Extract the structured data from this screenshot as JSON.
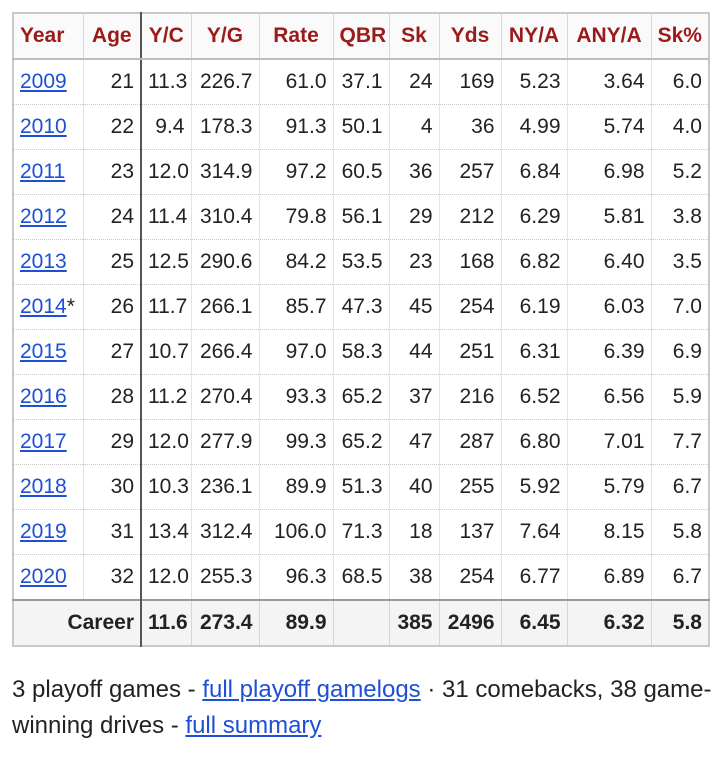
{
  "table": {
    "headers": [
      "Year",
      "Age",
      "Y/C",
      "Y/G",
      "Rate",
      "QBR",
      "Sk",
      "Yds",
      "NY/A",
      "ANY/A",
      "Sk%"
    ],
    "rows": [
      {
        "year": "2009",
        "award": "",
        "age": "21",
        "ypc": "11.3",
        "ypg": "226.7",
        "rate": "61.0",
        "qbr": "37.1",
        "sk": "24",
        "yds": "169",
        "nya": "5.23",
        "anya": "3.64",
        "skpct": "6.0"
      },
      {
        "year": "2010",
        "award": "",
        "age": "22",
        "ypc": "9.4",
        "ypg": "178.3",
        "rate": "91.3",
        "qbr": "50.1",
        "sk": "4",
        "yds": "36",
        "nya": "4.99",
        "anya": "5.74",
        "skpct": "4.0"
      },
      {
        "year": "2011",
        "award": "",
        "age": "23",
        "ypc": "12.0",
        "ypg": "314.9",
        "rate": "97.2",
        "qbr": "60.5",
        "sk": "36",
        "yds": "257",
        "nya": "6.84",
        "anya": "6.98",
        "skpct": "5.2"
      },
      {
        "year": "2012",
        "award": "",
        "age": "24",
        "ypc": "11.4",
        "ypg": "310.4",
        "rate": "79.8",
        "qbr": "56.1",
        "sk": "29",
        "yds": "212",
        "nya": "6.29",
        "anya": "5.81",
        "skpct": "3.8"
      },
      {
        "year": "2013",
        "award": "",
        "age": "25",
        "ypc": "12.5",
        "ypg": "290.6",
        "rate": "84.2",
        "qbr": "53.5",
        "sk": "23",
        "yds": "168",
        "nya": "6.82",
        "anya": "6.40",
        "skpct": "3.5"
      },
      {
        "year": "2014",
        "award": "*",
        "age": "26",
        "ypc": "11.7",
        "ypg": "266.1",
        "rate": "85.7",
        "qbr": "47.3",
        "sk": "45",
        "yds": "254",
        "nya": "6.19",
        "anya": "6.03",
        "skpct": "7.0"
      },
      {
        "year": "2015",
        "award": "",
        "age": "27",
        "ypc": "10.7",
        "ypg": "266.4",
        "rate": "97.0",
        "qbr": "58.3",
        "sk": "44",
        "yds": "251",
        "nya": "6.31",
        "anya": "6.39",
        "skpct": "6.9"
      },
      {
        "year": "2016",
        "award": "",
        "age": "28",
        "ypc": "11.2",
        "ypg": "270.4",
        "rate": "93.3",
        "qbr": "65.2",
        "sk": "37",
        "yds": "216",
        "nya": "6.52",
        "anya": "6.56",
        "skpct": "5.9"
      },
      {
        "year": "2017",
        "award": "",
        "age": "29",
        "ypc": "12.0",
        "ypg": "277.9",
        "rate": "99.3",
        "qbr": "65.2",
        "sk": "47",
        "yds": "287",
        "nya": "6.80",
        "anya": "7.01",
        "skpct": "7.7"
      },
      {
        "year": "2018",
        "award": "",
        "age": "30",
        "ypc": "10.3",
        "ypg": "236.1",
        "rate": "89.9",
        "qbr": "51.3",
        "sk": "40",
        "yds": "255",
        "nya": "5.92",
        "anya": "5.79",
        "skpct": "6.7"
      },
      {
        "year": "2019",
        "award": "",
        "age": "31",
        "ypc": "13.4",
        "ypg": "312.4",
        "rate": "106.0",
        "qbr": "71.3",
        "sk": "18",
        "yds": "137",
        "nya": "7.64",
        "anya": "8.15",
        "skpct": "5.8"
      },
      {
        "year": "2020",
        "award": "",
        "age": "32",
        "ypc": "12.0",
        "ypg": "255.3",
        "rate": "96.3",
        "qbr": "68.5",
        "sk": "38",
        "yds": "254",
        "nya": "6.77",
        "anya": "6.89",
        "skpct": "6.7"
      }
    ],
    "career": {
      "label": "Career",
      "ypc": "11.6",
      "ypg": "273.4",
      "rate": "89.9",
      "qbr": "",
      "sk": "385",
      "yds": "2496",
      "nya": "6.45",
      "anya": "6.32",
      "skpct": "5.8"
    }
  },
  "footnote": {
    "text1": "3 playoff games - ",
    "link1": "full playoff gamelogs",
    "text2": " · 31 comebacks, 38 game-winning drives - ",
    "link2": "full summary"
  },
  "colors": {
    "header_text": "#9b1b1b",
    "link": "#1e50d6"
  }
}
